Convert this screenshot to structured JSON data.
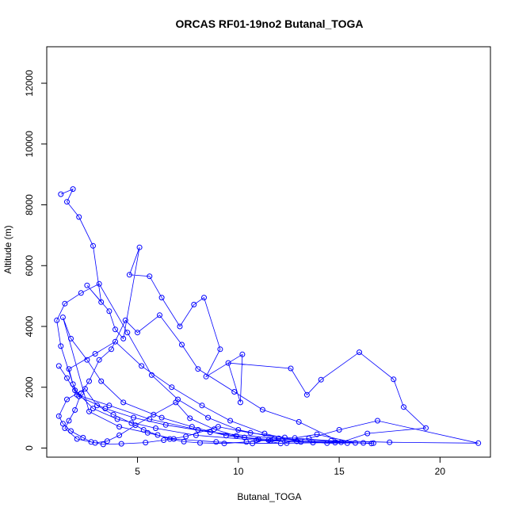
{
  "chart_data": {
    "type": "line",
    "title": "ORCAS RF01-19no2 Butanal_TOGA",
    "xlabel": "Butanal_TOGA",
    "ylabel": "Altitude (m)",
    "xlim": [
      0.5,
      22.5
    ],
    "ylim": [
      -300,
      13200
    ],
    "x_ticks": [
      5,
      10,
      15,
      20
    ],
    "y_ticks": [
      0,
      2000,
      4000,
      6000,
      8000,
      10000,
      12000
    ],
    "grid": false,
    "marker": "open-circle",
    "colors": {
      "series": "#0000ff",
      "axis": "#000000"
    },
    "series": [
      {
        "x": [
          1.2,
          1.8,
          1.5,
          2.1,
          2.8,
          3.2,
          2.5,
          3.6,
          3.9,
          4.3,
          5.1,
          4.6,
          5.6,
          6.2,
          7.1,
          7.8,
          8.3,
          9.1,
          8.4,
          10.2,
          10.1,
          9.5,
          12.6,
          13.4,
          14.1,
          16.0,
          17.7,
          18.2,
          19.3,
          16.4,
          15.1,
          13.0,
          11.2,
          9.8,
          8.0,
          7.2,
          6.1,
          5.0,
          4.4,
          3.7,
          3.1,
          2.6,
          2.2,
          1.9,
          1.6,
          1.4,
          2.0,
          2.9,
          3.5,
          4.1,
          4.9,
          5.8,
          6.9,
          7.6,
          8.8,
          9.9,
          11.0,
          12.1,
          13.5,
          15.0,
          16.9,
          21.9,
          17.5,
          14.6,
          12.3,
          10.6,
          9.0,
          7.4,
          6.3,
          5.4,
          4.2,
          3.3,
          2.7,
          2.3,
          1.7,
          1.3,
          1.1,
          1.5,
          2.4,
          3.0,
          3.8,
          4.7,
          5.3,
          6.0,
          6.6,
          7.3,
          8.1,
          9.3,
          10.4,
          11.5,
          12.8,
          13.9,
          15.8,
          16.6,
          11.8,
          8.6,
          6.4,
          4.8,
          3.4,
          2.1,
          1.8,
          1.6,
          2.9,
          3.9,
          5.2,
          6.7,
          8.2,
          9.6,
          11.3,
          12.9,
          14.4,
          16.2,
          10.9,
          7.9,
          5.9,
          4.0,
          2.8,
          1.9,
          1.2,
          1.0,
          1.4,
          2.2,
          3.1,
          4.5,
          5.7,
          7.0,
          8.5,
          10.0,
          12.0,
          13.7,
          15.4,
          11.6,
          9.4,
          7.7,
          6.2,
          4.3,
          3.2,
          2.5,
          1.7,
          1.3,
          2.6,
          4.1,
          5.5,
          6.8,
          8.9,
          10.7,
          12.4,
          14.8,
          16.7,
          13.1,
          10.3,
          8.0,
          5.6,
          3.6,
          2.0,
          1.5,
          1.1
        ],
        "y": [
          8350,
          8520,
          8100,
          7600,
          6650,
          4800,
          5350,
          4500,
          3900,
          3600,
          6600,
          5700,
          5650,
          4950,
          4000,
          4720,
          4950,
          3250,
          2350,
          3080,
          1500,
          2800,
          2620,
          1750,
          2250,
          3150,
          2260,
          1350,
          660,
          480,
          190,
          860,
          1260,
          1850,
          2600,
          3400,
          4370,
          3800,
          4200,
          3250,
          2900,
          2200,
          1800,
          1250,
          900,
          650,
          300,
          170,
          230,
          420,
          750,
          1100,
          1500,
          980,
          620,
          400,
          280,
          150,
          320,
          600,
          900,
          160,
          190,
          240,
          350,
          500,
          700,
          380,
          260,
          180,
          140,
          120,
          200,
          340,
          560,
          800,
          1050,
          1600,
          1950,
          1400,
          1100,
          820,
          600,
          430,
          300,
          210,
          170,
          150,
          200,
          260,
          330,
          450,
          170,
          150,
          320,
          520,
          760,
          1000,
          1300,
          1700,
          2100,
          2600,
          3100,
          3500,
          2700,
          2000,
          1400,
          900,
          480,
          220,
          160,
          170,
          260,
          420,
          650,
          950,
          1300,
          1900,
          3350,
          4200,
          4750,
          5100,
          5400,
          3800,
          2400,
          1600,
          1000,
          600,
          320,
          180,
          160,
          240,
          410,
          700,
          1000,
          1500,
          2200,
          2900,
          3600,
          4300,
          1200,
          700,
          500,
          300,
          200,
          150,
          160,
          180,
          160,
          200,
          350,
          600,
          950,
          1400,
          1750,
          2300,
          2700
        ]
      }
    ]
  }
}
